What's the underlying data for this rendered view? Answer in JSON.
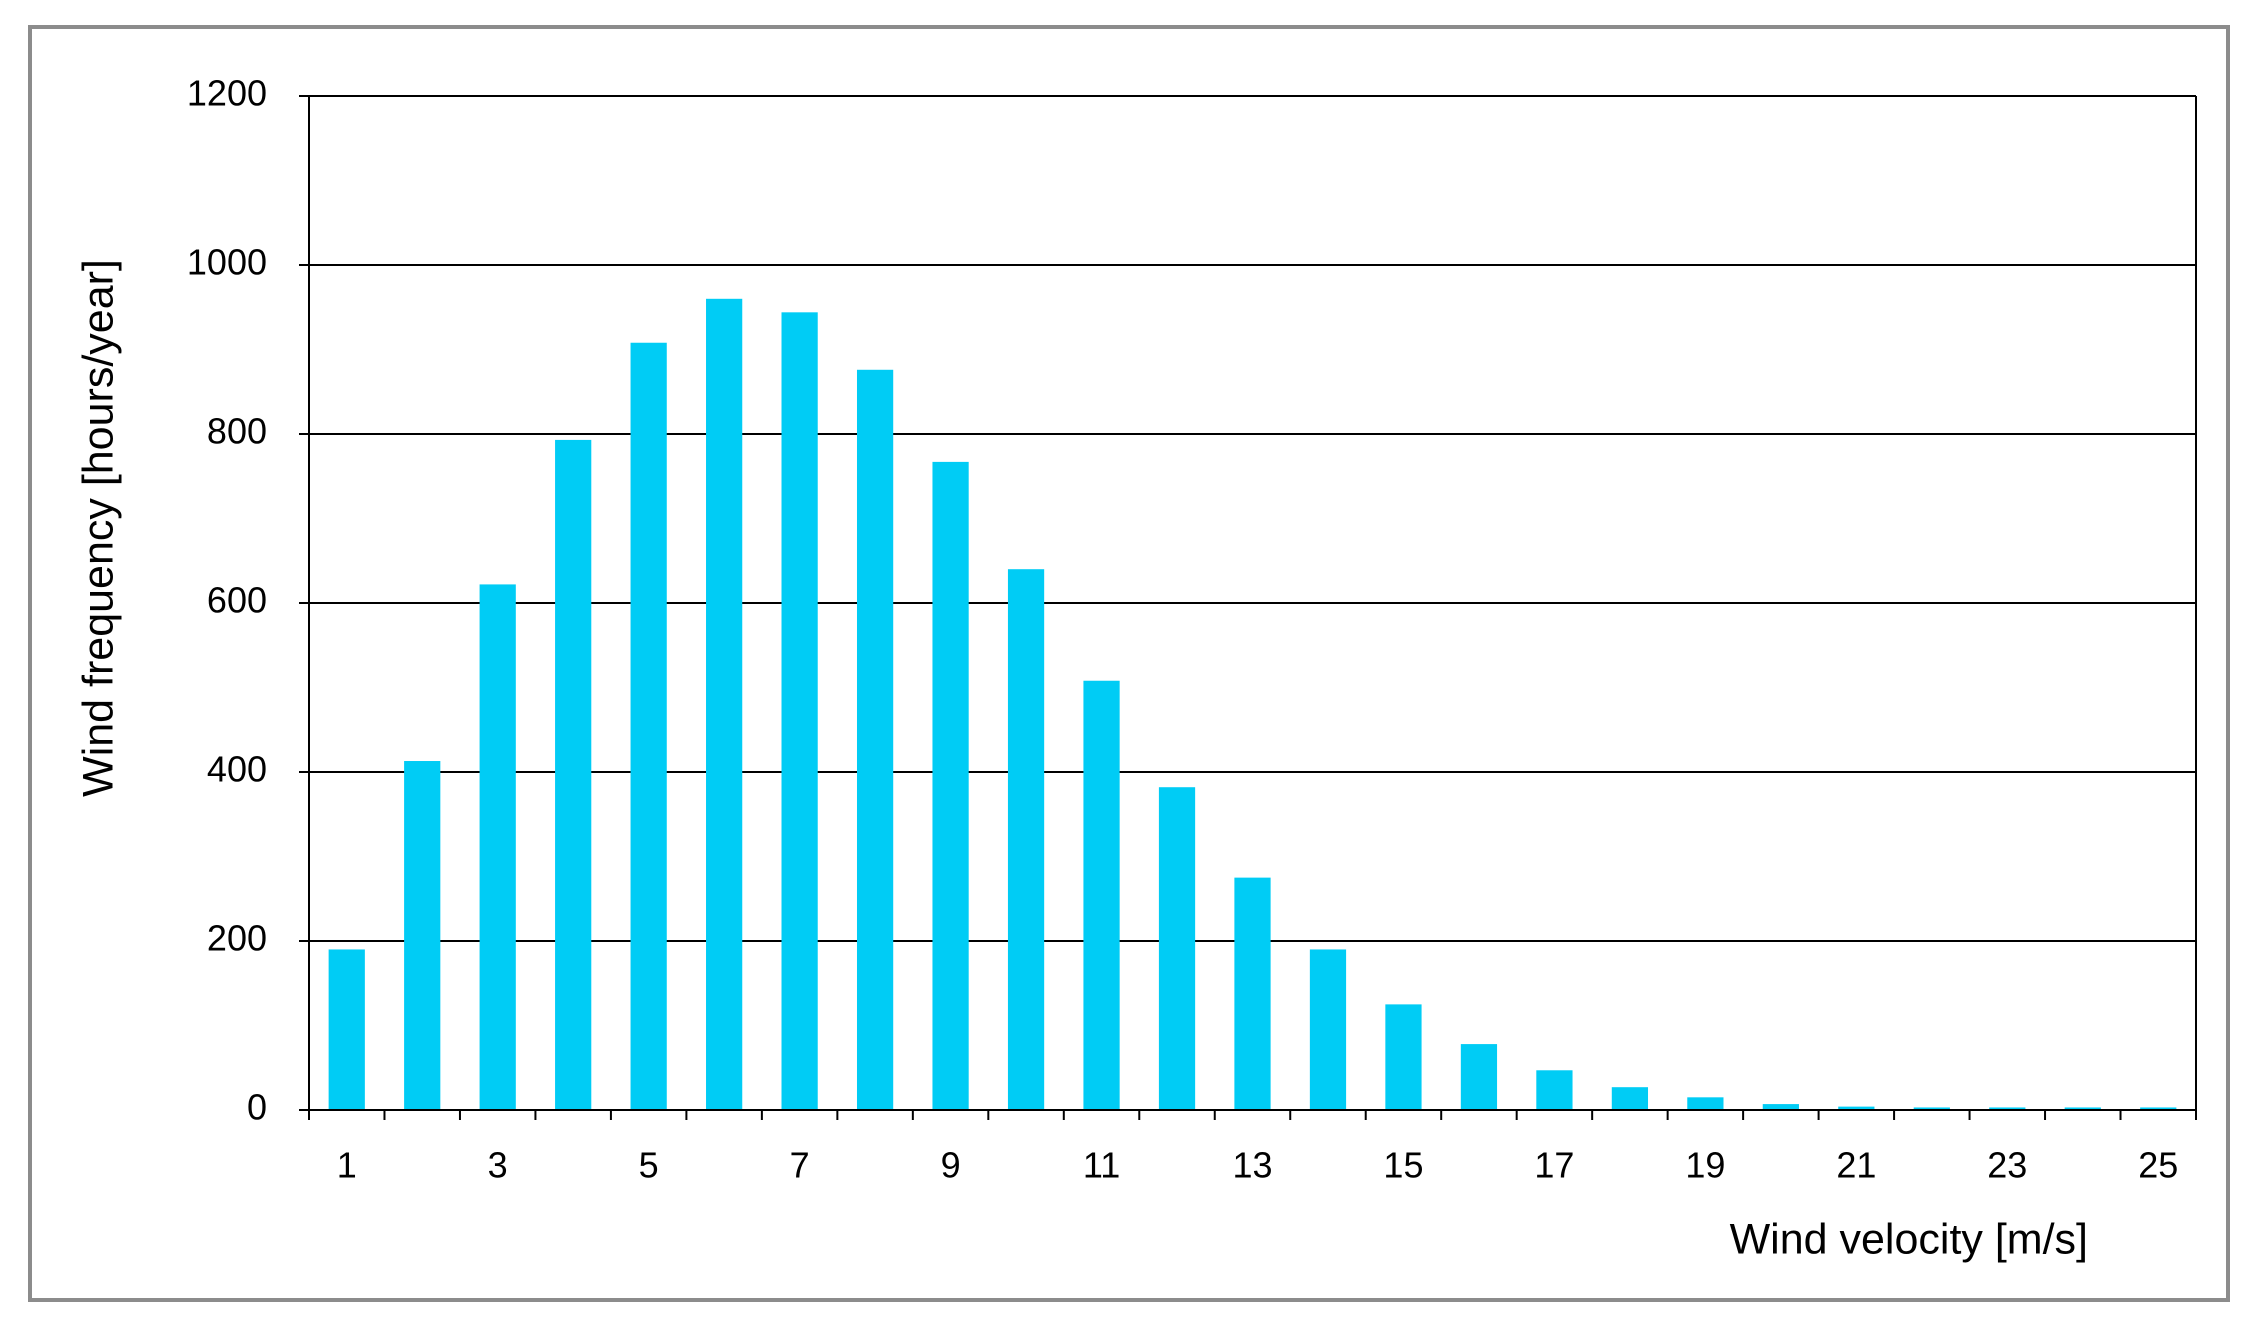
{
  "chart_data": {
    "type": "bar",
    "x_label": "Wind velocity [m/s]",
    "y_label": "Wind frequency [hours/year]",
    "categories": [
      1,
      null,
      3,
      null,
      5,
      null,
      7,
      null,
      9,
      null,
      11,
      null,
      13,
      null,
      15,
      null,
      17,
      null,
      19,
      null,
      21,
      null,
      23,
      null,
      25
    ],
    "values": [
      190,
      413,
      622,
      793,
      908,
      960,
      944,
      876,
      767,
      640,
      508,
      382,
      275,
      190,
      125,
      78,
      47,
      27,
      15,
      7,
      4,
      3,
      3,
      3,
      3
    ],
    "color": "#00ccf5",
    "ylim": [
      0,
      1200
    ],
    "yticks": [
      0,
      200,
      400,
      600,
      800,
      1000,
      1200
    ],
    "grid": true
  }
}
